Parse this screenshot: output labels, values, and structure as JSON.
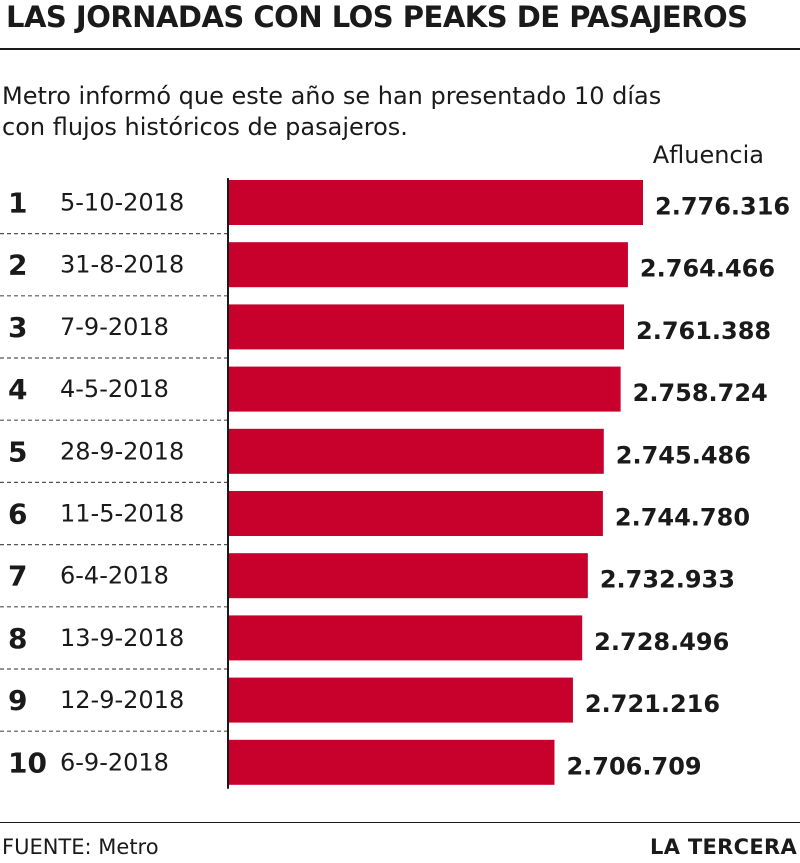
{
  "chart_data": {
    "type": "bar",
    "orientation": "horizontal",
    "title": "LAS JORNADAS CON LOS PEAKS DE PASAJEROS",
    "subtitle": "Metro informó que este año se han presentado 10 días con flujos históricos de pasajeros.",
    "value_header": "Afluencia",
    "ranks": [
      "1",
      "2",
      "3",
      "4",
      "5",
      "6",
      "7",
      "8",
      "9",
      "10"
    ],
    "categories": [
      "5-10-2018",
      "31-8-2018",
      "7-9-2018",
      "4-5-2018",
      "28-9-2018",
      "11-5-2018",
      "6-4-2018",
      "13-9-2018",
      "12-9-2018",
      "6-9-2018"
    ],
    "values": [
      2776316,
      2764466,
      2761388,
      2758724,
      2745486,
      2744780,
      2732933,
      2728496,
      2721216,
      2706709
    ],
    "value_labels": [
      "2.776.316",
      "2.764.466",
      "2.761.388",
      "2.758.724",
      "2.745.486",
      "2.744.780",
      "2.732.933",
      "2.728.496",
      "2.721.216",
      "2.706.709"
    ],
    "bar_color": "#c8002c",
    "source": "FUENTE: Metro",
    "publisher": "LA TERCERA"
  }
}
